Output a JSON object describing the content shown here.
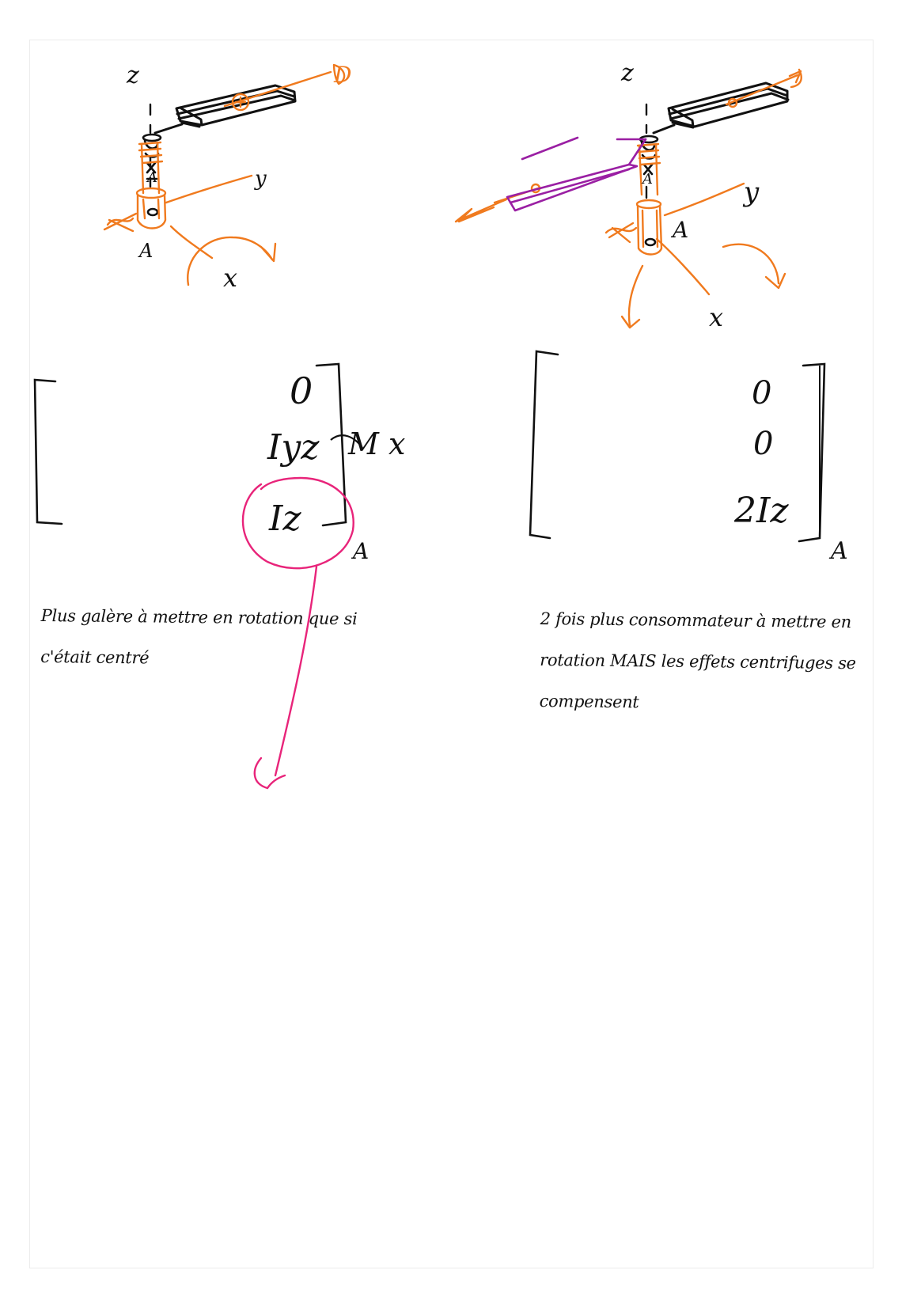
{
  "colors": {
    "ink": "#111111",
    "orange": "#f07a1e",
    "purple": "#9a1fa3",
    "pink": "#e8247a",
    "page_border": "#ececec"
  },
  "left": {
    "axis_z": "z",
    "axis_y": "y",
    "axis_x": "x",
    "point_a": "A",
    "point_a_upper": "A",
    "vector_d": "D",
    "matrix": {
      "row1": "0",
      "row2": "Iyz",
      "row3": "Iz",
      "side_note": "M x",
      "subscript": "A"
    },
    "note_line1": "Plus galère à mettre en rotation que si",
    "note_line2": "c'était centré"
  },
  "right": {
    "axis_z": "z",
    "axis_y": "y",
    "axis_x": "x",
    "point_a": "A",
    "point_a_upper": "A",
    "matrix": {
      "row1": "0",
      "row2": "0",
      "row3": "2Iz",
      "subscript": "A"
    },
    "note_line1": "2 fois plus consommateur à mettre en",
    "note_line2": "rotation MAIS les effets centrifuges se",
    "note_line3": "compensent"
  }
}
